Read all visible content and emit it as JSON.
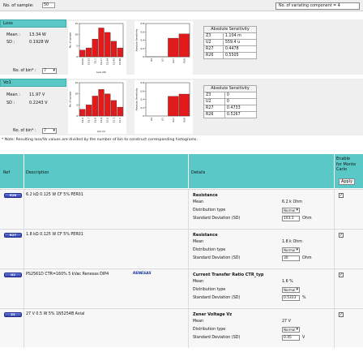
{
  "top": {
    "num_sample_label": "No. of sample:",
    "num_sample_value": "50",
    "variating_label": "No. of variating component = 4"
  },
  "loss": {
    "title": "Loss",
    "mean_label": "Mean :",
    "mean_value": "13.34 W",
    "sd_label": "SD :",
    "sd_value": "0.1928 W",
    "bin_label": "No. of bin* :",
    "bin_value": "7",
    "sensitivity_header": "Absolute Sensitivity",
    "sensitivity": [
      {
        "name": "Z3",
        "value": "1.104 m"
      },
      {
        "name": "U2",
        "value": "559.4 u"
      },
      {
        "name": "R27",
        "value": "0.4478"
      },
      {
        "name": "R26",
        "value": "0.5505"
      }
    ]
  },
  "vo": {
    "title": "Vo1",
    "mean_label": "Mean :",
    "mean_value": "11.97 V",
    "sd_label": "SD :",
    "sd_value": "0.2243 V",
    "bin_label": "No. of bin* :",
    "bin_value": "7",
    "sensitivity_header": "Absolute Sensitivity",
    "sensitivity": [
      {
        "name": "Z3",
        "value": "0"
      },
      {
        "name": "U2",
        "value": "0"
      },
      {
        "name": "R27",
        "value": "0.4733"
      },
      {
        "name": "R26",
        "value": "0.5267"
      }
    ]
  },
  "note": "* Note: Resulting loss/Vo values are divided by the number of bin to construct corresponding histograms.",
  "chart_data": [
    {
      "type": "bar",
      "xlabel": "Loss (W)",
      "ylabel": "No. of sample",
      "categories": [
        "13.06",
        "13.13",
        "13.2",
        "13.27",
        "13.34",
        "13.41",
        "13.48"
      ],
      "values": [
        3,
        4,
        8,
        13,
        11,
        7,
        4
      ],
      "ylim": [
        0,
        15
      ]
    },
    {
      "type": "bar",
      "xlabel": "",
      "ylabel": "Absolute Sensitivity",
      "categories": [
        "Z3",
        "U2",
        "R27",
        "R26"
      ],
      "values": [
        0.0011,
        0.00056,
        0.4478,
        0.5505
      ],
      "ylim": [
        0,
        0.8
      ]
    },
    {
      "type": "bar",
      "xlabel": "Vo1 (V)",
      "ylabel": "No. of sample",
      "categories": [
        "11.6",
        "11.7",
        "11.8",
        "11.9",
        "12.0",
        "12.1",
        "12.2"
      ],
      "values": [
        3,
        5,
        9,
        12,
        10,
        7,
        4
      ],
      "ylim": [
        0,
        15
      ]
    },
    {
      "type": "bar",
      "xlabel": "",
      "ylabel": "Absolute Sensitivity",
      "categories": [
        "Z3",
        "U2",
        "R27",
        "R26"
      ],
      "values": [
        0,
        0,
        0.4733,
        0.5267
      ],
      "ylim": [
        0,
        0.8
      ]
    }
  ],
  "table": {
    "col_ref": "Ref",
    "col_desc": "Description",
    "col_details": "Details",
    "col_enable": "Enable\nfor Monte\nCarlo",
    "apply_label": "Apply",
    "rows": [
      {
        "ref": "R26",
        "desc": "6.2 kΩ 0.125 W CF 5% PER01",
        "param": "Resistance",
        "mean_label": "Mean",
        "mean_value": "6.2 k Ohm",
        "dist_label": "Distribution type",
        "dist_value": "Normal",
        "sd_label": "Standard Deviation (SD)",
        "sd_value": "103.3",
        "sd_unit": "Ohm",
        "checked": "✓"
      },
      {
        "ref": "R27",
        "desc": "1.8 kΩ 0.125 W CF 5% PER01",
        "param": "Resistance",
        "mean_label": "Mean",
        "mean_value": "1.8 k Ohm",
        "dist_label": "Distribution type",
        "dist_value": "Normal",
        "sd_label": "Standard Deviation (SD)",
        "sd_value": "30",
        "sd_unit": "Ohm",
        "checked": "✓"
      },
      {
        "ref": "U2",
        "desc": "PS2561D CTR=160% 5 kVac Renesas DIP4",
        "logo": "RENESAS",
        "param": "Current Transfer Ratio CTR_typ",
        "mean_label": "Mean",
        "mean_value": "1.6 %",
        "dist_label": "Distribution type",
        "dist_value": "Normal",
        "sd_label": "Standard Deviation (SD)",
        "sd_value": "0.5333",
        "sd_unit": "%",
        "checked": "✓"
      },
      {
        "ref": "Z3",
        "desc": "27 V 0.5 W 5% 1N5254B Axial",
        "param": "Zener Voltage Vz",
        "mean_label": "Mean",
        "mean_value": "27 V",
        "dist_label": "Distribution type",
        "dist_value": "Normal",
        "sd_label": "Standard Deviation (SD)",
        "sd_value": "0.45",
        "sd_unit": "V",
        "checked": "✓"
      }
    ]
  }
}
